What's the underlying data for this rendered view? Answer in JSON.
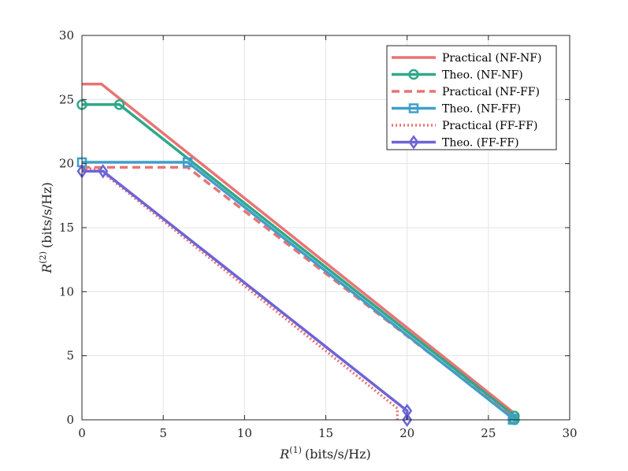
{
  "chart_data": {
    "type": "line",
    "title": "",
    "xlabel": {
      "symbol": "R",
      "sup": "(1)",
      "unit": "(bits/s/Hz)"
    },
    "ylabel": {
      "symbol": "R",
      "sup": "(2)",
      "unit": "(bits/s/Hz)"
    },
    "xlim": [
      0,
      30
    ],
    "ylim": [
      0,
      30
    ],
    "xticks": [
      0,
      5,
      10,
      15,
      20,
      25,
      30
    ],
    "yticks": [
      0,
      5,
      10,
      15,
      20,
      25,
      30
    ],
    "grid": true,
    "legend_position": "top-right",
    "series": [
      {
        "name": "Practical (NF-NF)",
        "color": "#e87474",
        "dash": "solid",
        "marker": "none",
        "x": [
          0,
          1.2,
          26.5,
          26.5
        ],
        "y": [
          26.2,
          26.2,
          0.6,
          0
        ]
      },
      {
        "name": "Theo. (NF-NF)",
        "color": "#2fa889",
        "dash": "solid",
        "marker": "circle",
        "x": [
          0,
          2.3,
          26.6,
          26.6
        ],
        "y": [
          24.6,
          24.6,
          0.3,
          0
        ]
      },
      {
        "name": "Practical (NF-FF)",
        "color": "#e87474",
        "dash": "dashed",
        "marker": "none",
        "x": [
          0,
          6.5,
          26.5,
          26.5
        ],
        "y": [
          19.7,
          19.7,
          0.2,
          0
        ]
      },
      {
        "name": "Theo. (NF-FF)",
        "color": "#3f9fc9",
        "dash": "solid",
        "marker": "square",
        "x": [
          0,
          6.5,
          26.5,
          26.5
        ],
        "y": [
          20.1,
          20.1,
          0.1,
          0
        ]
      },
      {
        "name": "Practical (FF-FF)",
        "color": "#e87474",
        "dash": "dotted",
        "marker": "none",
        "x": [
          0,
          1.0,
          19.4,
          19.4
        ],
        "y": [
          19.6,
          19.6,
          0.9,
          0
        ]
      },
      {
        "name": "Theo. (FF-FF)",
        "color": "#6d64d6",
        "dash": "solid",
        "marker": "diamond",
        "x": [
          0,
          1.3,
          20.0,
          20.0
        ],
        "y": [
          19.4,
          19.4,
          0.7,
          0
        ]
      }
    ]
  }
}
